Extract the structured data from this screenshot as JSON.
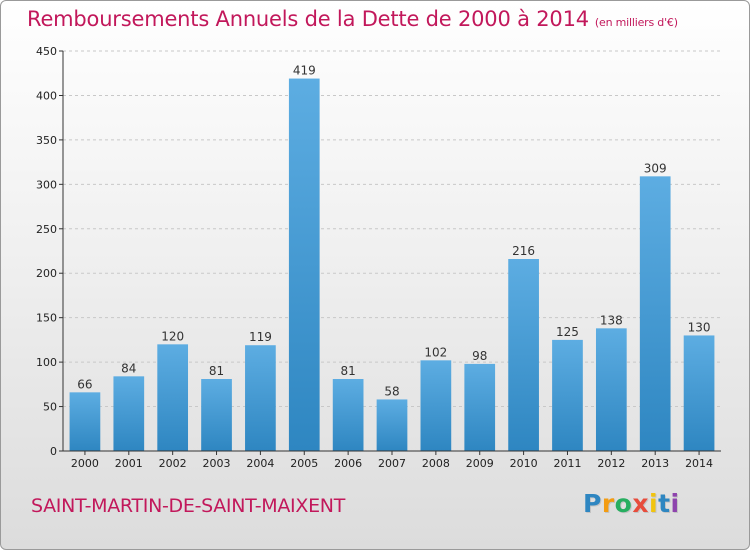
{
  "header": {
    "title": "Remboursements Annuels de la Dette de 2000 à 2014",
    "subtitle": "(en milliers d'€)"
  },
  "footer": {
    "commune": "SAINT-MARTIN-DE-SAINT-MAIXENT",
    "logo_letters": [
      "P",
      "r",
      "o",
      "x",
      "i",
      "t",
      "i"
    ],
    "logo_colors": [
      "#2e86c1",
      "#f39c12",
      "#27ae60",
      "#e74c3c",
      "#f1c40f",
      "#2e86c1",
      "#8e44ad"
    ]
  },
  "colors": {
    "title": "#c2185b",
    "bar_light": "#5dade2",
    "bar_dark": "#2e86c1",
    "grid": "#c8c8c8",
    "axis": "#333333"
  },
  "chart_data": {
    "type": "bar",
    "categories": [
      "2000",
      "2001",
      "2002",
      "2003",
      "2004",
      "2005",
      "2006",
      "2007",
      "2008",
      "2009",
      "2010",
      "2011",
      "2012",
      "2013",
      "2014"
    ],
    "values": [
      66,
      84,
      120,
      81,
      119,
      419,
      81,
      58,
      102,
      98,
      216,
      125,
      138,
      309,
      130
    ],
    "ylim": [
      0,
      450
    ],
    "yticks": [
      0,
      50,
      100,
      150,
      200,
      250,
      300,
      350,
      400,
      450
    ],
    "grid": true,
    "data_labels": true
  }
}
